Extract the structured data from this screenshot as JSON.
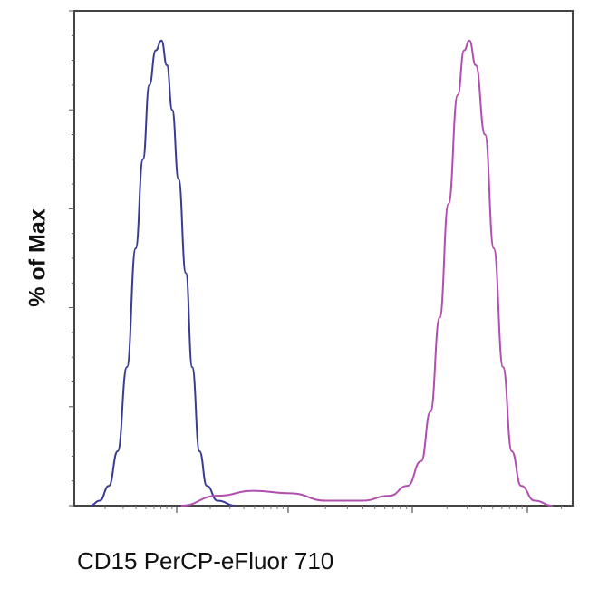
{
  "chart_data": {
    "type": "line",
    "title": "",
    "xlabel": "CD15 PerCP-eFluor 710",
    "ylabel": "% of Max",
    "x_scale": "log",
    "xlim": [
      0,
      1023
    ],
    "ylim": [
      0,
      100
    ],
    "grid": false,
    "legend": "none",
    "series": [
      {
        "color": "#3b3b95",
        "x": [
          33,
          52,
          71,
          89,
          108,
          126,
          141,
          154,
          167,
          179,
          190,
          201,
          214,
          229,
          242,
          257,
          272,
          294,
          331
        ],
        "y": [
          0,
          1,
          4,
          11,
          28,
          52,
          70,
          85,
          92,
          94,
          89,
          80,
          66,
          47,
          28,
          11,
          4,
          1,
          0
        ]
      },
      {
        "color": "#b14fb0",
        "x": [
          219,
          294,
          368,
          443,
          517,
          591,
          647,
          684,
          712,
          731,
          750,
          768,
          787,
          800,
          811,
          824,
          843,
          861,
          880,
          898,
          917,
          945,
          982
        ],
        "y": [
          0,
          2,
          3,
          2.5,
          1,
          1,
          2,
          4,
          9,
          19,
          38,
          61,
          83,
          92,
          94,
          89,
          75,
          52,
          28,
          11,
          4,
          1,
          0
        ]
      }
    ]
  }
}
